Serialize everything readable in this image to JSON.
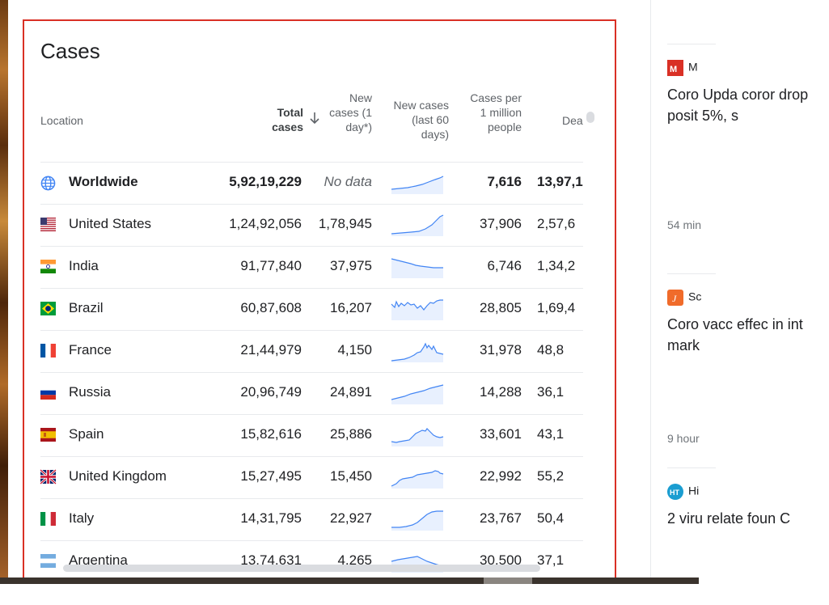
{
  "card": {
    "title": "Cases"
  },
  "table": {
    "headers": {
      "location": "Location",
      "total": "Total cases",
      "new_1day": "New cases (1 day*)",
      "new_60": "New cases (last 60 days)",
      "per_million": "Cases per 1 million people",
      "deaths": "Dea"
    },
    "rows": [
      {
        "name": "Worldwide",
        "total": "5,92,19,229",
        "new1": "No data",
        "permil": "7,616",
        "deaths": "13,97,1",
        "flag": "globe-icon"
      },
      {
        "name": "United States",
        "total": "1,24,92,056",
        "new1": "1,78,945",
        "permil": "37,906",
        "deaths": "2,57,6",
        "flag": "us-flag-icon"
      },
      {
        "name": "India",
        "total": "91,77,840",
        "new1": "37,975",
        "permil": "6,746",
        "deaths": "1,34,2",
        "flag": "india-flag-icon"
      },
      {
        "name": "Brazil",
        "total": "60,87,608",
        "new1": "16,207",
        "permil": "28,805",
        "deaths": "1,69,4",
        "flag": "brazil-flag-icon"
      },
      {
        "name": "France",
        "total": "21,44,979",
        "new1": "4,150",
        "permil": "31,978",
        "deaths": "48,8",
        "flag": "france-flag-icon"
      },
      {
        "name": "Russia",
        "total": "20,96,749",
        "new1": "24,891",
        "permil": "14,288",
        "deaths": "36,1",
        "flag": "russia-flag-icon"
      },
      {
        "name": "Spain",
        "total": "15,82,616",
        "new1": "25,886",
        "permil": "33,601",
        "deaths": "43,1",
        "flag": "spain-flag-icon"
      },
      {
        "name": "United Kingdom",
        "total": "15,27,495",
        "new1": "15,450",
        "permil": "22,992",
        "deaths": "55,2",
        "flag": "uk-flag-icon"
      },
      {
        "name": "Italy",
        "total": "14,31,795",
        "new1": "22,927",
        "permil": "23,767",
        "deaths": "50,4",
        "flag": "italy-flag-icon"
      },
      {
        "name": "Argentina",
        "total": "13,74,631",
        "new1": "4,265",
        "permil": "30,500",
        "deaths": "37,1",
        "flag": "argentina-flag-icon"
      }
    ]
  },
  "news": [
    {
      "source": "M",
      "headline": "Coro Upda coror drop posit 5%, s",
      "time": "54 min"
    },
    {
      "source": "Sc",
      "headline": "Coro vacc effec in int mark",
      "time": "9 hour"
    },
    {
      "source": "Hi",
      "headline": "2 viru relate foun C",
      "time": ""
    }
  ],
  "colors": {
    "accent_border": "#d93025",
    "spark_line": "#4285f4",
    "spark_fill": "#e8f0fe"
  }
}
